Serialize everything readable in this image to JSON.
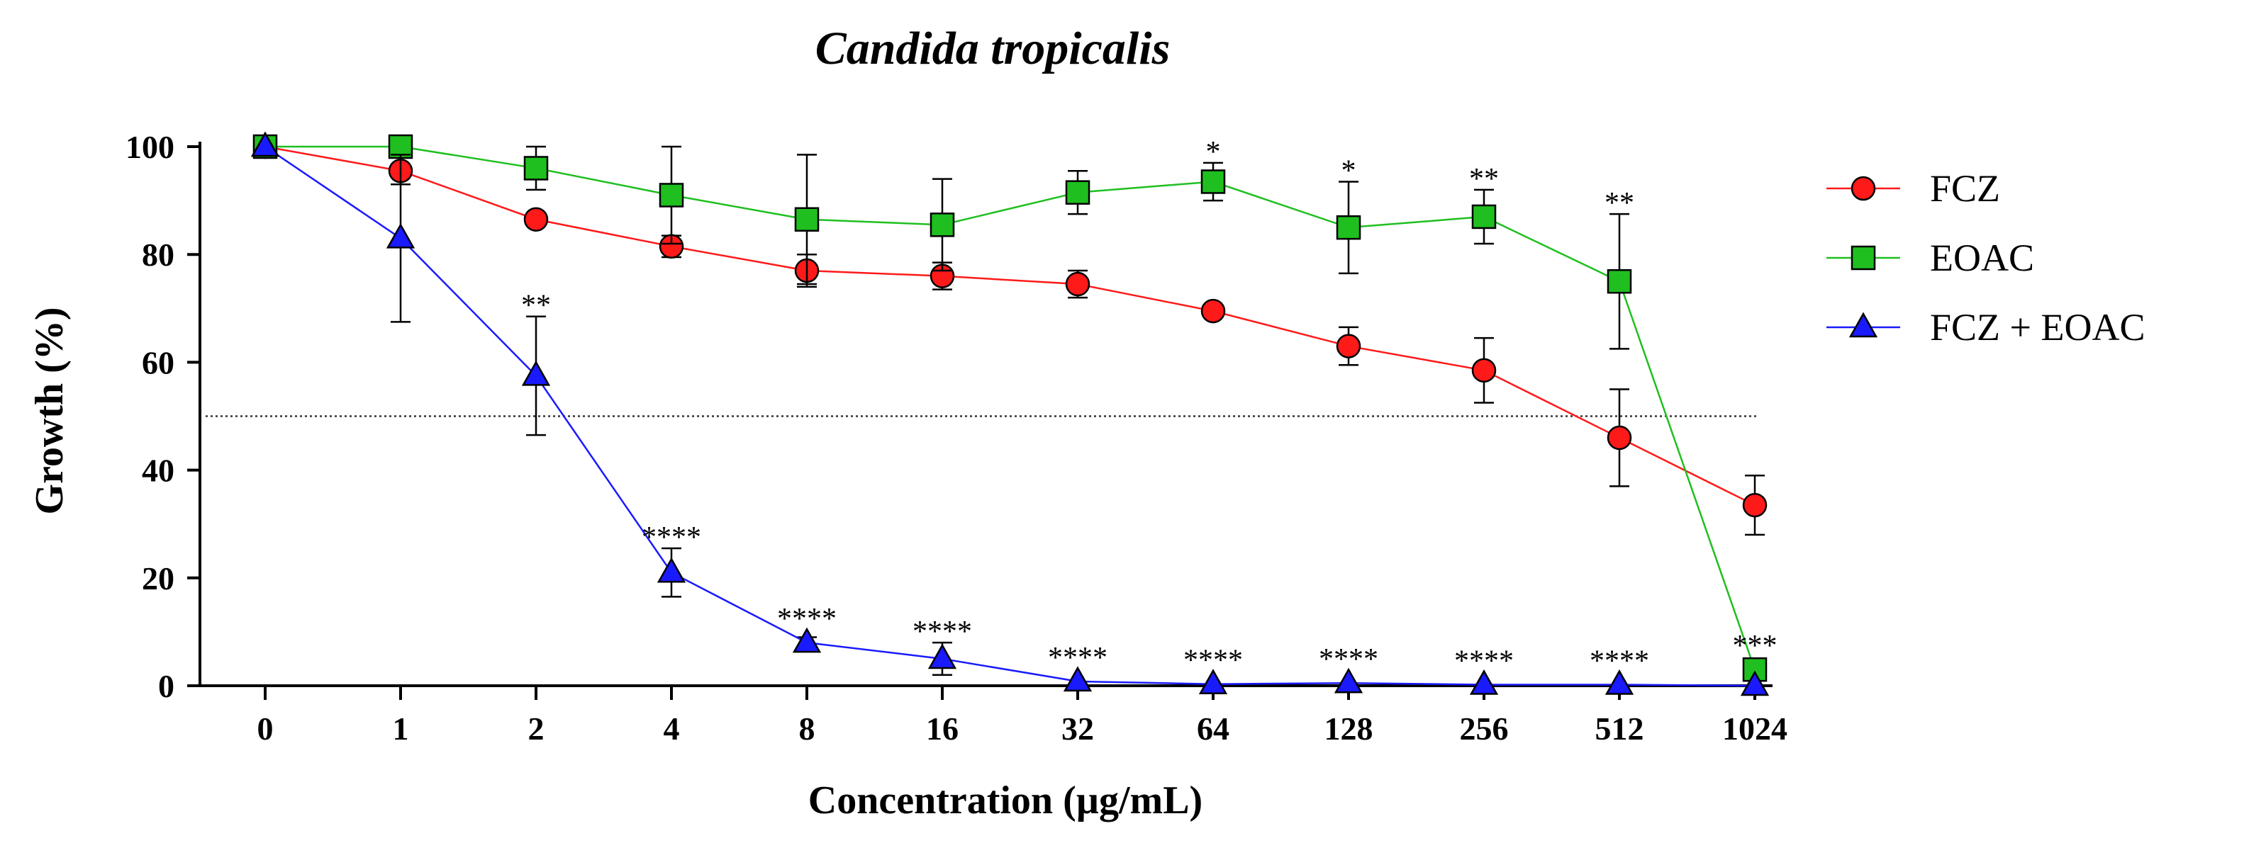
{
  "chart_data": {
    "type": "line",
    "title": "Candida tropicalis",
    "xlabel": "Concentration (µg/mL)",
    "ylabel": "Growth (%)",
    "categories": [
      "0",
      "1",
      "2",
      "4",
      "8",
      "16",
      "32",
      "64",
      "128",
      "256",
      "512",
      "1024"
    ],
    "ylim": [
      0,
      100
    ],
    "yticks": [
      "0",
      "20",
      "40",
      "60",
      "80",
      "100"
    ],
    "reference_line": 50,
    "grid": false,
    "legend_position": "right",
    "series": [
      {
        "name": "FCZ",
        "marker": "circle",
        "color": "#ff1a1a",
        "values": [
          100,
          95.5,
          86.5,
          81.5,
          77,
          76,
          74.5,
          69.5,
          63,
          58.5,
          46,
          33.5
        ],
        "errors": [
          0,
          2.5,
          1,
          2,
          3,
          2.5,
          2.5,
          0.8,
          3.5,
          6,
          9,
          5.5
        ],
        "significance": [
          "",
          "",
          "",
          "",
          "",
          "",
          "",
          "",
          "",
          "",
          "",
          ""
        ]
      },
      {
        "name": "EOAC",
        "marker": "square",
        "color": "#1fbf1f",
        "values": [
          100,
          100,
          96,
          91,
          86.5,
          85.5,
          91.5,
          93.5,
          85,
          87,
          75,
          3
        ],
        "errors": [
          0,
          0,
          4,
          9,
          12,
          8.5,
          4,
          3.5,
          8.5,
          5,
          12.5,
          0
        ],
        "significance": [
          "",
          "",
          "",
          "",
          "",
          "",
          "",
          "*",
          "*",
          "**",
          "**",
          "***"
        ]
      },
      {
        "name": "FCZ + EOAC",
        "marker": "triangle",
        "color": "#1a1aff",
        "values": [
          100,
          83,
          57.5,
          21,
          8,
          5,
          0.8,
          0.3,
          0.5,
          0.2,
          0.2,
          0
        ],
        "errors": [
          0,
          15.5,
          11,
          4.5,
          1,
          3,
          0,
          0,
          0,
          0,
          0,
          0
        ],
        "significance": [
          "",
          "",
          "**",
          "****",
          "****",
          "****",
          "****",
          "****",
          "****",
          "****",
          "****",
          ""
        ]
      }
    ]
  }
}
